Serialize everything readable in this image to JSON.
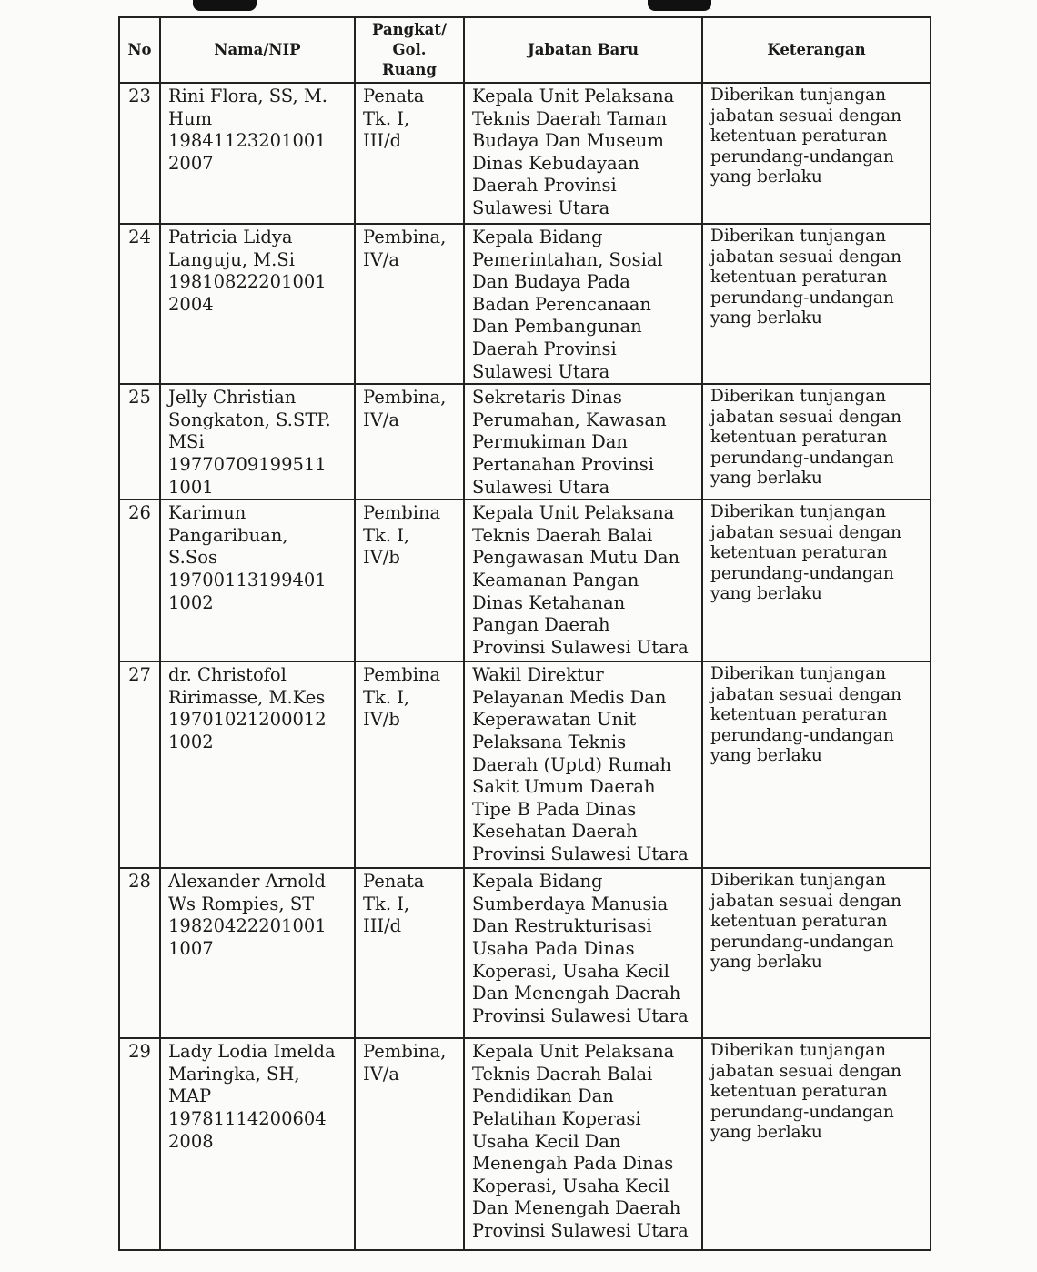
{
  "table": {
    "headers": {
      "no": "No",
      "nama": "Nama/NIP",
      "pangkat": "Pangkat/\nGol.\nRuang",
      "jabatan": "Jabatan Baru",
      "keterangan": "Keterangan"
    },
    "rows": [
      {
        "no": "23",
        "nama": "Rini Flora, SS, M.\nHum\n19841123201001\n2007",
        "pangkat": "Penata\nTk. I,\nIII/d",
        "jabatan": "Kepala Unit Pelaksana\nTeknis Daerah Taman\nBudaya Dan Museum\nDinas Kebudayaan\nDaerah Provinsi\nSulawesi Utara",
        "keterangan": "Diberikan tunjangan\njabatan sesuai dengan\nketentuan peraturan\nperundang-undangan\nyang berlaku"
      },
      {
        "no": "24",
        "nama": "Patricia Lidya\nLanguju, M.Si\n19810822201001\n2004",
        "pangkat": "Pembina,\nIV/a",
        "jabatan": "Kepala Bidang\nPemerintahan, Sosial\nDan Budaya Pada\nBadan Perencanaan\nDan Pembangunan\nDaerah Provinsi\nSulawesi Utara",
        "keterangan": "Diberikan tunjangan\njabatan sesuai dengan\nketentuan peraturan\nperundang-undangan\nyang berlaku"
      },
      {
        "no": "25",
        "nama": "Jelly Christian\nSongkaton, S.STP.\nMSi\n19770709199511\n1001",
        "pangkat": "Pembina,\nIV/a",
        "jabatan": "Sekretaris Dinas\nPerumahan, Kawasan\nPermukiman Dan\nPertanahan Provinsi\nSulawesi Utara",
        "keterangan": "Diberikan tunjangan\njabatan sesuai dengan\nketentuan peraturan\nperundang-undangan\nyang berlaku"
      },
      {
        "no": "26",
        "nama": "Karimun\nPangaribuan,\nS.Sos\n19700113199401\n1002",
        "pangkat": "Pembina\nTk. I,\nIV/b",
        "jabatan": "Kepala Unit Pelaksana\nTeknis Daerah Balai\nPengawasan Mutu Dan\nKeamanan Pangan\nDinas Ketahanan\nPangan Daerah\nProvinsi Sulawesi Utara",
        "keterangan": "Diberikan tunjangan\njabatan sesuai dengan\nketentuan peraturan\nperundang-undangan\nyang berlaku"
      },
      {
        "no": "27",
        "nama": "dr. Christofol\nRirimasse, M.Kes\n19701021200012\n1002",
        "pangkat": "Pembina\nTk. I,\nIV/b",
        "jabatan": "Wakil Direktur\nPelayanan Medis Dan\nKeperawatan Unit\nPelaksana Teknis\nDaerah (Uptd) Rumah\nSakit Umum Daerah\nTipe B Pada Dinas\nKesehatan Daerah\nProvinsi Sulawesi Utara",
        "keterangan": "Diberikan tunjangan\njabatan sesuai dengan\nketentuan peraturan\nperundang-undangan\nyang berlaku"
      },
      {
        "no": "28",
        "nama": "Alexander Arnold\nWs Rompies, ST\n19820422201001\n1007",
        "pangkat": "Penata\nTk. I,\nIII/d",
        "jabatan": "Kepala Bidang\nSumberdaya Manusia\nDan Restrukturisasi\nUsaha Pada Dinas\nKoperasi, Usaha Kecil\nDan Menengah Daerah\nProvinsi Sulawesi Utara",
        "keterangan": "Diberikan tunjangan\njabatan sesuai dengan\nketentuan peraturan\nperundang-undangan\nyang berlaku"
      },
      {
        "no": "29",
        "nama": "Lady Lodia Imelda\nMaringka, SH,\nMAP\n19781114200604\n2008",
        "pangkat": "Pembina,\nIV/a",
        "jabatan": "Kepala Unit Pelaksana\nTeknis Daerah Balai\nPendidikan Dan\nPelatihan Koperasi\nUsaha Kecil Dan\nMenengah Pada Dinas\nKoperasi, Usaha Kecil\nDan Menengah Daerah\nProvinsi Sulawesi Utara",
        "keterangan": "Diberikan tunjangan\njabatan sesuai dengan\nketentuan peraturan\nperundang-undangan\nyang berlaku"
      }
    ]
  }
}
